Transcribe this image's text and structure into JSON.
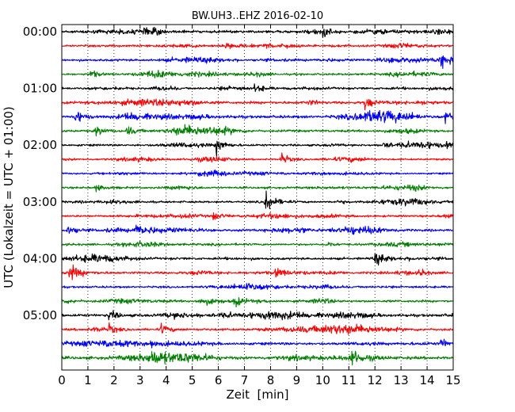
{
  "chart_data": {
    "type": "line",
    "title": "BW.UH3..EHZ 2016-02-10",
    "xlabel": "Zeit  [min]",
    "ylabel": "UTC (Lokalzeit = UTC + 01:00)",
    "xlim": [
      0,
      15
    ],
    "x_ticks": [
      "0",
      "1",
      "2",
      "3",
      "4",
      "5",
      "6",
      "7",
      "8",
      "9",
      "10",
      "11",
      "12",
      "13",
      "14",
      "15"
    ],
    "y_ticks": [
      "00:00",
      "01:00",
      "02:00",
      "03:00",
      "04:00",
      "05:00"
    ],
    "grid": "vertical dotted lines at each minute",
    "trace_colors": [
      "#000000",
      "#ff0000",
      "#0000ff",
      "#008000"
    ],
    "series": [
      {
        "values": [
          [
            "00:00",
            4.5
          ]
        ]
      },
      {
        "values": [
          [
            "00:15",
            3.5
          ]
        ]
      },
      {
        "values": [
          [
            "00:30",
            4.0
          ]
        ]
      },
      {
        "values": [
          [
            "00:45",
            3.5
          ]
        ]
      },
      {
        "values": [
          [
            "01:00",
            3.5
          ]
        ]
      },
      {
        "values": [
          [
            "01:15",
            4.5
          ]
        ]
      },
      {
        "values": [
          [
            "01:30",
            5.0
          ]
        ]
      },
      {
        "values": [
          [
            "01:45",
            4.0
          ]
        ]
      },
      {
        "values": [
          [
            "02:00",
            3.5
          ]
        ]
      },
      {
        "values": [
          [
            "02:15",
            3.0
          ]
        ]
      },
      {
        "values": [
          [
            "02:30",
            3.0
          ]
        ]
      },
      {
        "values": [
          [
            "02:45",
            3.5
          ]
        ]
      },
      {
        "values": [
          [
            "03:00",
            3.5
          ]
        ]
      },
      {
        "values": [
          [
            "03:15",
            3.5
          ]
        ]
      },
      {
        "values": [
          [
            "03:30",
            4.0
          ]
        ]
      },
      {
        "values": [
          [
            "03:45",
            3.5
          ]
        ]
      },
      {
        "values": [
          [
            "04:00",
            4.0
          ]
        ]
      },
      {
        "values": [
          [
            "04:15",
            4.0
          ]
        ]
      },
      {
        "values": [
          [
            "04:30",
            3.5
          ]
        ]
      },
      {
        "values": [
          [
            "04:45",
            4.0
          ]
        ]
      },
      {
        "values": [
          [
            "05:00",
            4.5
          ]
        ]
      },
      {
        "values": [
          [
            "05:15",
            4.0
          ]
        ]
      },
      {
        "values": [
          [
            "05:30",
            4.5
          ]
        ]
      },
      {
        "values": [
          [
            "05:45",
            5.0
          ]
        ]
      }
    ],
    "events": [
      {
        "row": 0,
        "t": 10.0,
        "amp": 5
      },
      {
        "row": 1,
        "t": 6.3,
        "amp": 6
      },
      {
        "row": 2,
        "t": 14.5,
        "amp": 10
      },
      {
        "row": 3,
        "t": 1.1,
        "amp": 7
      },
      {
        "row": 4,
        "t": 7.4,
        "amp": 9
      },
      {
        "row": 5,
        "t": 11.6,
        "amp": 11
      },
      {
        "row": 6,
        "t": 0.5,
        "amp": 10
      },
      {
        "row": 6,
        "t": 14.7,
        "amp": 12
      },
      {
        "row": 7,
        "t": 1.3,
        "amp": 9
      },
      {
        "row": 7,
        "t": 2.5,
        "amp": 8
      },
      {
        "row": 8,
        "t": 5.9,
        "amp": 14
      },
      {
        "row": 8,
        "t": 12.3,
        "amp": 7
      },
      {
        "row": 8,
        "t": 14.7,
        "amp": 7
      },
      {
        "row": 9,
        "t": 8.4,
        "amp": 11
      },
      {
        "row": 11,
        "t": 1.3,
        "amp": 6
      },
      {
        "row": 12,
        "t": 7.8,
        "amp": 18
      },
      {
        "row": 13,
        "t": 5.8,
        "amp": 8
      },
      {
        "row": 14,
        "t": 0.2,
        "amp": 12
      },
      {
        "row": 14,
        "t": 2.8,
        "amp": 11
      },
      {
        "row": 15,
        "t": 10.1,
        "amp": 6
      },
      {
        "row": 16,
        "t": 12.0,
        "amp": 11
      },
      {
        "row": 17,
        "t": 0.3,
        "amp": 14
      },
      {
        "row": 17,
        "t": 8.2,
        "amp": 8
      },
      {
        "row": 17,
        "t": 13.7,
        "amp": 7
      },
      {
        "row": 18,
        "t": 7.0,
        "amp": 6
      },
      {
        "row": 19,
        "t": 6.6,
        "amp": 10
      },
      {
        "row": 20,
        "t": 1.8,
        "amp": 9
      },
      {
        "row": 20,
        "t": 7.8,
        "amp": 7
      },
      {
        "row": 21,
        "t": 1.8,
        "amp": 8
      },
      {
        "row": 21,
        "t": 3.8,
        "amp": 9
      },
      {
        "row": 22,
        "t": 3.4,
        "amp": 7
      },
      {
        "row": 22,
        "t": 14.5,
        "amp": 9
      },
      {
        "row": 23,
        "t": 11.1,
        "amp": 14
      },
      {
        "row": 23,
        "t": 3.4,
        "amp": 8
      }
    ]
  }
}
